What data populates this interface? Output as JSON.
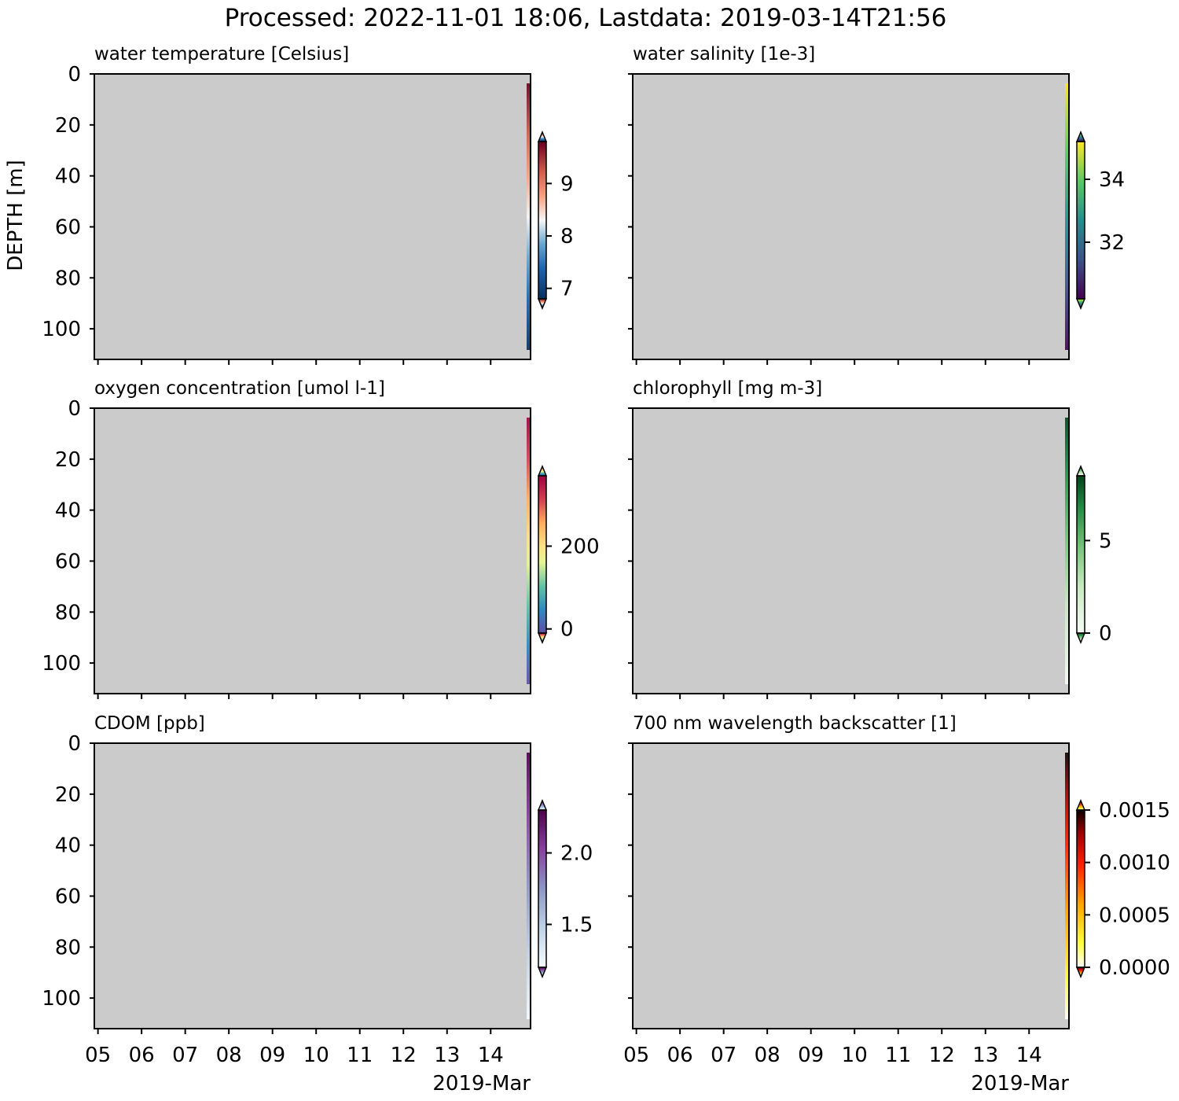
{
  "suptitle": "Processed: 2022-11-01 18:06, Lastdata: 2019-03-14T21:56",
  "date_axis_label": "2019-Mar",
  "colors": {
    "missing_data": "#cbcbcb"
  },
  "chart_data": [
    {
      "type": "heatmap",
      "title": "water temperature [Celsius]",
      "ylabel": "DEPTH [m]",
      "ylim": [
        112,
        0
      ],
      "yticks": [
        "0",
        "20",
        "40",
        "60",
        "80",
        "100"
      ],
      "xticks": [
        "05",
        "06",
        "07",
        "08",
        "09",
        "10",
        "11",
        "12",
        "13",
        "14"
      ],
      "xticklabels_shown": false,
      "xlim": [
        "2019-03-04T22:00",
        "2019-03-14T21:56"
      ],
      "colormap": "RdBu_r",
      "colorbar": {
        "ticks": [
          "7",
          "8",
          "9"
        ],
        "vmin": 6.8,
        "vmax": 9.8,
        "extend": "both"
      }
    },
    {
      "type": "heatmap",
      "title": "water salinity [1e-3]",
      "ylabel": "",
      "ylim": [
        112,
        0
      ],
      "yticks": [],
      "xticks": [
        "05",
        "06",
        "07",
        "08",
        "09",
        "10",
        "11",
        "12",
        "13",
        "14"
      ],
      "xticklabels_shown": false,
      "xlim": [
        "2019-03-04T22:00",
        "2019-03-14T21:56"
      ],
      "colormap": "viridis",
      "colorbar": {
        "ticks": [
          "32",
          "34"
        ],
        "vmin": 30.2,
        "vmax": 35.2,
        "extend": "both"
      }
    },
    {
      "type": "heatmap",
      "title": "oxygen concentration [umol l-1]",
      "ylabel": "",
      "ylim": [
        112,
        0
      ],
      "yticks": [
        "0",
        "20",
        "40",
        "60",
        "80",
        "100"
      ],
      "xticks": [
        "05",
        "06",
        "07",
        "08",
        "09",
        "10",
        "11",
        "12",
        "13",
        "14"
      ],
      "xticklabels_shown": false,
      "xlim": [
        "2019-03-04T22:00",
        "2019-03-14T21:56"
      ],
      "colormap": "Spectral_r",
      "colorbar": {
        "ticks": [
          "0",
          "200"
        ],
        "vmin": -10,
        "vmax": 370,
        "extend": "both"
      }
    },
    {
      "type": "heatmap",
      "title": "chlorophyll [mg m-3]",
      "ylabel": "",
      "ylim": [
        112,
        0
      ],
      "yticks": [],
      "xticks": [
        "05",
        "06",
        "07",
        "08",
        "09",
        "10",
        "11",
        "12",
        "13",
        "14"
      ],
      "xticklabels_shown": false,
      "xlim": [
        "2019-03-04T22:00",
        "2019-03-14T21:56"
      ],
      "colormap": "Greens",
      "colorbar": {
        "ticks": [
          "0",
          "5"
        ],
        "vmin": 0,
        "vmax": 8.5,
        "extend": "both"
      }
    },
    {
      "type": "heatmap",
      "title": "CDOM [ppb]",
      "ylabel": "",
      "ylim": [
        112,
        0
      ],
      "yticks": [
        "0",
        "20",
        "40",
        "60",
        "80",
        "100"
      ],
      "xticks": [
        "05",
        "06",
        "07",
        "08",
        "09",
        "10",
        "11",
        "12",
        "13",
        "14"
      ],
      "xticklabels_shown": true,
      "xlim": [
        "2019-03-04T22:00",
        "2019-03-14T21:56"
      ],
      "colormap": "BuPu",
      "colorbar": {
        "ticks": [
          "1.5",
          "2.0"
        ],
        "vmin": 1.2,
        "vmax": 2.3,
        "extend": "both"
      }
    },
    {
      "type": "heatmap",
      "title": "700 nm wavelength backscatter [1]",
      "ylabel": "",
      "ylim": [
        112,
        0
      ],
      "yticks": [],
      "xticks": [
        "05",
        "06",
        "07",
        "08",
        "09",
        "10",
        "11",
        "12",
        "13",
        "14"
      ],
      "xticklabels_shown": true,
      "xlim": [
        "2019-03-04T22:00",
        "2019-03-14T21:56"
      ],
      "colormap": "hot_r",
      "colorbar": {
        "ticks": [
          "0.0000",
          "0.0005",
          "0.0010",
          "0.0015"
        ],
        "vmin": 0,
        "vmax": 0.0015,
        "extend": "both"
      }
    }
  ]
}
